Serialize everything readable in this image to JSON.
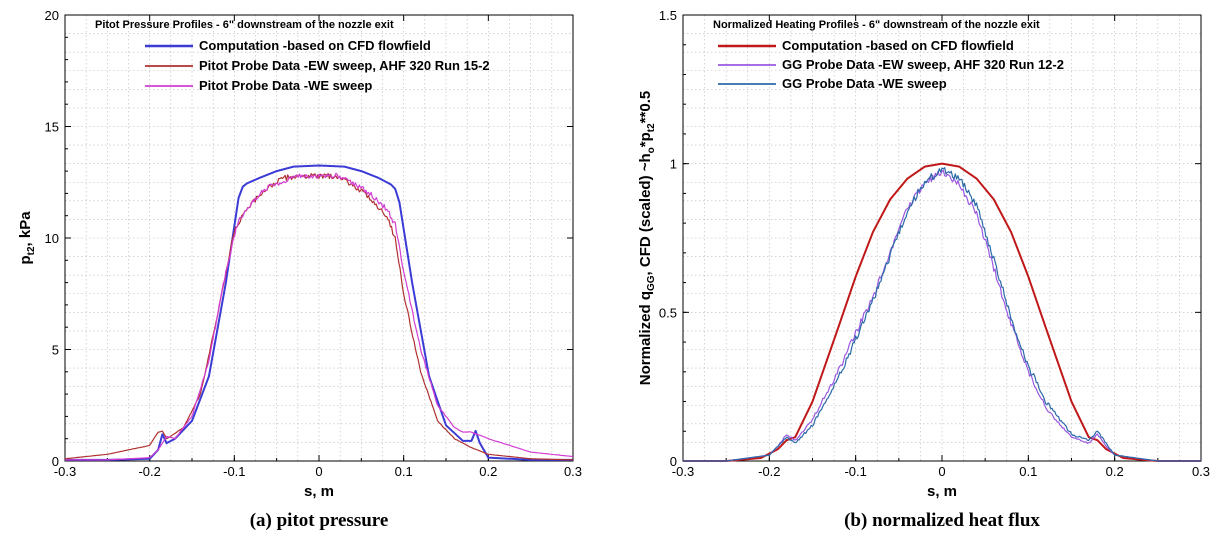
{
  "chart_data": [
    {
      "type": "line",
      "title": "Pitot Pressure Profiles - 6\" downstream of the nozzle exit",
      "xlabel": "s, m",
      "ylabel": {
        "base": "p",
        "sub": "t2",
        "rest": ", kPa"
      },
      "caption": "(a) pitot pressure",
      "xlim": [
        -0.3,
        0.3
      ],
      "ylim": [
        0,
        20
      ],
      "xticks": [
        -0.3,
        -0.2,
        -0.1,
        0,
        0.1,
        0.2,
        0.3
      ],
      "yticks": [
        0,
        5,
        10,
        15,
        20
      ],
      "grid": true,
      "legend_position": "top-left",
      "series": [
        {
          "name": "Computation -based on CFD flowfield",
          "color": "#3b3bd6",
          "x": [
            -0.3,
            -0.25,
            -0.2,
            -0.19,
            -0.185,
            -0.18,
            -0.17,
            -0.15,
            -0.13,
            -0.11,
            -0.095,
            -0.09,
            -0.085,
            -0.07,
            -0.05,
            -0.03,
            0,
            0.03,
            0.05,
            0.07,
            0.085,
            0.09,
            0.095,
            0.11,
            0.13,
            0.15,
            0.17,
            0.18,
            0.185,
            0.19,
            0.2,
            0.25,
            0.3
          ],
          "y": [
            0.05,
            0.05,
            0.1,
            0.5,
            1.2,
            0.8,
            1.0,
            1.8,
            3.8,
            8.0,
            11.8,
            12.3,
            12.45,
            12.7,
            13.0,
            13.2,
            13.25,
            13.2,
            13.0,
            12.7,
            12.4,
            12.2,
            11.6,
            8.0,
            3.8,
            1.6,
            0.9,
            0.9,
            1.35,
            0.8,
            0.15,
            0.05,
            0.05
          ]
        },
        {
          "name": "Pitot Probe Data -EW sweep, AHF 320 Run 15-2",
          "color": "#b03030",
          "x": [
            -0.3,
            -0.25,
            -0.2,
            -0.19,
            -0.185,
            -0.18,
            -0.16,
            -0.14,
            -0.12,
            -0.1,
            -0.09,
            -0.08,
            -0.06,
            -0.04,
            -0.02,
            0,
            0.02,
            0.04,
            0.06,
            0.08,
            0.09,
            0.1,
            0.12,
            0.14,
            0.16,
            0.18,
            0.2,
            0.25,
            0.3
          ],
          "y": [
            0.1,
            0.3,
            0.7,
            1.3,
            1.35,
            1.0,
            1.5,
            3.0,
            6.5,
            10.3,
            11.0,
            11.5,
            12.3,
            12.7,
            12.8,
            12.75,
            12.8,
            12.4,
            11.8,
            11.0,
            10.0,
            7.5,
            4.0,
            1.8,
            1.0,
            0.6,
            0.3,
            0.1,
            0.05
          ]
        },
        {
          "name": "Pitot Probe Data -WE sweep",
          "color": "#d23ed2",
          "x": [
            -0.3,
            -0.25,
            -0.2,
            -0.19,
            -0.18,
            -0.17,
            -0.15,
            -0.13,
            -0.11,
            -0.095,
            -0.08,
            -0.06,
            -0.04,
            -0.02,
            0,
            0.02,
            0.04,
            0.06,
            0.08,
            0.09,
            0.1,
            0.12,
            0.14,
            0.16,
            0.17,
            0.18,
            0.2,
            0.25,
            0.3
          ],
          "y": [
            0.05,
            0.05,
            0.15,
            0.5,
            1.1,
            1.0,
            2.0,
            4.5,
            8.5,
            10.8,
            11.6,
            12.3,
            12.6,
            12.8,
            12.75,
            12.8,
            12.5,
            12.0,
            11.3,
            10.6,
            8.5,
            5.0,
            2.5,
            1.5,
            1.3,
            1.3,
            1.0,
            0.4,
            0.2
          ]
        }
      ]
    },
    {
      "type": "line",
      "title": "Normalized Heating Profiles - 6\" downstream of the nozzle exit",
      "xlabel": "s, m",
      "ylabel": {
        "base": "Normalized q",
        "sub1": "GG",
        "mid": ", CFD (scaled) ~h",
        "sub2": "o",
        "mid2": "*p",
        "sub3": "t2",
        "rest": "**0.5"
      },
      "caption": "(b) normalized heat flux",
      "xlim": [
        -0.3,
        0.3
      ],
      "ylim": [
        0,
        1.5
      ],
      "xticks": [
        -0.3,
        -0.2,
        -0.1,
        0,
        0.1,
        0.2,
        0.3
      ],
      "yticks": [
        0,
        0.5,
        1,
        1.5
      ],
      "grid": true,
      "legend_position": "top-left",
      "series": [
        {
          "name": "Computation -based on CFD flowfield",
          "color": "#c01818",
          "x": [
            -0.3,
            -0.25,
            -0.21,
            -0.19,
            -0.18,
            -0.17,
            -0.15,
            -0.12,
            -0.1,
            -0.08,
            -0.06,
            -0.04,
            -0.02,
            0,
            0.02,
            0.04,
            0.06,
            0.08,
            0.1,
            0.12,
            0.15,
            0.17,
            0.18,
            0.19,
            0.21,
            0.25,
            0.3
          ],
          "y": [
            0.0,
            0.0,
            0.01,
            0.04,
            0.07,
            0.08,
            0.2,
            0.45,
            0.62,
            0.77,
            0.88,
            0.95,
            0.99,
            1.0,
            0.99,
            0.95,
            0.88,
            0.77,
            0.62,
            0.45,
            0.2,
            0.08,
            0.07,
            0.04,
            0.01,
            0.0,
            0.0
          ]
        },
        {
          "name": "GG Probe Data -EW sweep, AHF 320 Run 12-2",
          "color": "#9a58e0",
          "x": [
            -0.3,
            -0.25,
            -0.2,
            -0.19,
            -0.18,
            -0.17,
            -0.15,
            -0.12,
            -0.1,
            -0.08,
            -0.06,
            -0.04,
            -0.02,
            0,
            0.02,
            0.04,
            0.06,
            0.08,
            0.1,
            0.12,
            0.15,
            0.17,
            0.18,
            0.19,
            0.2,
            0.25,
            0.3
          ],
          "y": [
            0.0,
            0.0,
            0.02,
            0.05,
            0.09,
            0.07,
            0.14,
            0.3,
            0.43,
            0.55,
            0.7,
            0.85,
            0.94,
            0.97,
            0.93,
            0.83,
            0.65,
            0.46,
            0.3,
            0.18,
            0.08,
            0.06,
            0.09,
            0.05,
            0.02,
            0.0,
            0.0
          ]
        },
        {
          "name": "GG Probe Data -WE sweep",
          "color": "#2a6aa8",
          "x": [
            -0.3,
            -0.25,
            -0.2,
            -0.19,
            -0.18,
            -0.17,
            -0.15,
            -0.12,
            -0.1,
            -0.08,
            -0.06,
            -0.04,
            -0.02,
            0,
            0.02,
            0.04,
            0.06,
            0.08,
            0.1,
            0.12,
            0.15,
            0.17,
            0.18,
            0.19,
            0.2,
            0.25,
            0.3
          ],
          "y": [
            0.0,
            0.0,
            0.02,
            0.05,
            0.08,
            0.06,
            0.12,
            0.28,
            0.41,
            0.54,
            0.69,
            0.84,
            0.94,
            0.98,
            0.95,
            0.86,
            0.68,
            0.48,
            0.32,
            0.2,
            0.09,
            0.07,
            0.1,
            0.06,
            0.02,
            0.0,
            0.0
          ]
        }
      ]
    }
  ]
}
